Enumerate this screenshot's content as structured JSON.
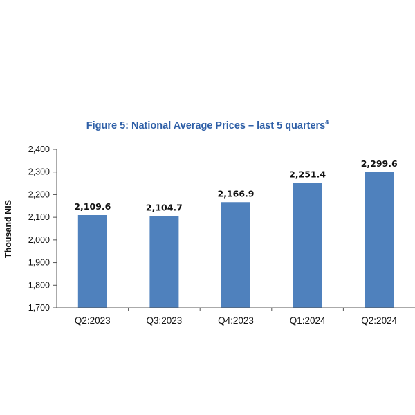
{
  "chart_data": {
    "type": "bar",
    "title": "Figure 5: National Average Prices – last 5 quarters",
    "title_footnote": "4",
    "xlabel": "",
    "ylabel": "Thousand NIS",
    "categories": [
      "Q2:2023",
      "Q3:2023",
      "Q4:2023",
      "Q1:2024",
      "Q2:2024"
    ],
    "values": [
      2109.6,
      2104.7,
      2166.9,
      2251.4,
      2299.6
    ],
    "value_labels": [
      "2,109.6",
      "2,104.7",
      "2,166.9",
      "2,251.4",
      "2,299.6"
    ],
    "ylim": [
      1700,
      2400
    ],
    "yticks": [
      1700,
      1800,
      1900,
      2000,
      2100,
      2200,
      2300,
      2400
    ],
    "ytick_labels": [
      "1,700",
      "1,800",
      "1,900",
      "2,000",
      "2,100",
      "2,200",
      "2,300",
      "2,400"
    ],
    "grid": false,
    "legend": "none",
    "bar_color": "#4f81bd",
    "title_color": "#2e5fa7"
  }
}
